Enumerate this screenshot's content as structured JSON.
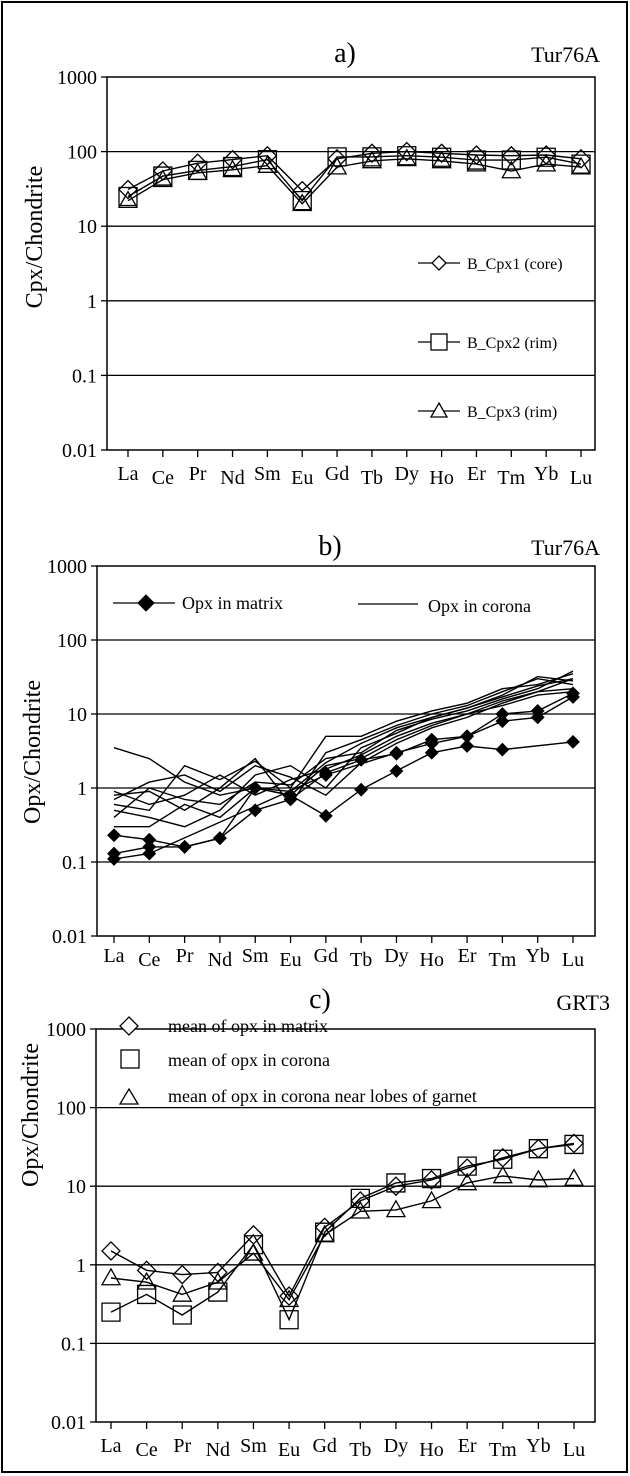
{
  "chart_data": [
    {
      "panel_label": "a)",
      "sample": "Tur76A",
      "type": "line",
      "scale": "log",
      "ylabel": "Cpx/Chondrite",
      "ylim": [
        0.01,
        1000
      ],
      "yticks": [
        "0.01",
        "0.1",
        "1",
        "10",
        "100",
        "1000"
      ],
      "categories": [
        "La",
        "Ce",
        "Pr",
        "Nd",
        "Sm",
        "Eu",
        "Gd",
        "Tb",
        "Dy",
        "Ho",
        "Er",
        "Tm",
        "Yb",
        "Lu"
      ],
      "grid": "horizontal",
      "legend_position": "right",
      "series": [
        {
          "name": "B_Cpx1 (core)",
          "marker": "diamond",
          "values": [
            31,
            55,
            70,
            78,
            88,
            30,
            80,
            95,
            100,
            95,
            90,
            88,
            90,
            80
          ]
        },
        {
          "name": "B_Cpx2 (rim)",
          "marker": "square",
          "values": [
            25,
            47,
            56,
            63,
            78,
            22,
            85,
            85,
            88,
            84,
            77,
            77,
            84,
            68
          ]
        },
        {
          "name": "B_Cpx3 (rim)",
          "marker": "triangle",
          "values": [
            22,
            42,
            52,
            57,
            65,
            20,
            62,
            75,
            80,
            75,
            68,
            55,
            68,
            62
          ]
        }
      ]
    },
    {
      "panel_label": "b)",
      "sample": "Tur76A",
      "type": "line",
      "scale": "log",
      "ylabel": "Opx/Chondrite",
      "ylim": [
        0.01,
        1000
      ],
      "yticks": [
        "0.01",
        "0.1",
        "1",
        "10",
        "100",
        "1000"
      ],
      "categories": [
        "La",
        "Ce",
        "Pr",
        "Nd",
        "Sm",
        "Eu",
        "Gd",
        "Tb",
        "Dy",
        "Ho",
        "Er",
        "Tm",
        "Yb",
        "Lu"
      ],
      "grid": "horizontal",
      "legend_position": "top",
      "legend": [
        "Opx in matrix",
        "Opx in corona"
      ],
      "series": [
        {
          "name": "Opx in matrix",
          "marker": "filled-diamond",
          "values": [
            0.23,
            0.2,
            0.16,
            0.21,
            0.5,
            0.7,
            1.6,
            2.4,
            2.9,
            4.5,
            5,
            10,
            11,
            19
          ]
        },
        {
          "name": "Opx in matrix",
          "marker": "filled-diamond",
          "values": [
            0.13,
            0.16,
            0.16,
            0.21,
            1.0,
            0.8,
            0.42,
            0.95,
            1.7,
            3.0,
            3.7,
            3.3,
            null,
            4.2
          ]
        },
        {
          "name": "Opx in matrix",
          "marker": "filled-diamond",
          "values": [
            0.11,
            0.13,
            null,
            null,
            null,
            null,
            1.5,
            null,
            3.0,
            4.0,
            5.0,
            8.0,
            9.0,
            17
          ]
        },
        {
          "name": "Opx in corona",
          "marker": "none",
          "values": [
            3.5,
            2.5,
            1.2,
            0.8,
            1.0,
            0.8,
            2.0,
            2.5,
            4.5,
            7,
            10,
            15,
            20,
            30
          ]
        },
        {
          "name": "Opx in corona",
          "marker": "none",
          "values": [
            0.8,
            0.9,
            0.5,
            1.0,
            2.5,
            0.6,
            3.0,
            4.5,
            7.0,
            10,
            13,
            20,
            30,
            25
          ]
        },
        {
          "name": "Opx in corona",
          "marker": "none",
          "values": [
            0.6,
            0.5,
            2.0,
            1.3,
            2.3,
            1.0,
            5.0,
            5.0,
            8.0,
            11,
            14,
            22,
            25,
            35
          ]
        },
        {
          "name": "Opx in corona",
          "marker": "none",
          "values": [
            0.5,
            0.4,
            0.3,
            0.5,
            1.5,
            2.0,
            1.0,
            3.5,
            5.5,
            9,
            12,
            18,
            32,
            28
          ]
        },
        {
          "name": "Opx in corona",
          "marker": "none",
          "values": [
            0.4,
            1.0,
            0.7,
            0.6,
            1.2,
            1.1,
            2.5,
            3.0,
            6.0,
            8.5,
            11,
            16,
            22,
            38
          ]
        },
        {
          "name": "Opx in corona",
          "marker": "none",
          "values": [
            0.7,
            1.2,
            1.5,
            0.9,
            2.0,
            1.4,
            0.8,
            2.2,
            4.0,
            6.5,
            9,
            14,
            20,
            22
          ]
        },
        {
          "name": "Opx in corona",
          "marker": "none",
          "values": [
            0.3,
            0.3,
            0.6,
            0.4,
            1.0,
            0.9,
            2.2,
            4.0,
            6.5,
            9,
            12,
            17,
            24,
            30
          ]
        },
        {
          "name": "Opx in corona",
          "marker": "none",
          "values": [
            0.9,
            0.6,
            0.8,
            1.5,
            0.8,
            1.3,
            1.8,
            2.8,
            5.0,
            7.5,
            10,
            13,
            18,
            20
          ]
        }
      ]
    },
    {
      "panel_label": "c)",
      "sample": "GRT3",
      "type": "line",
      "scale": "log",
      "ylabel": "Opx/Chondrite",
      "ylim": [
        0.01,
        1000
      ],
      "yticks": [
        "0.01",
        "0.1",
        "1",
        "10",
        "100",
        "1000"
      ],
      "categories": [
        "La",
        "Ce",
        "Pr",
        "Nd",
        "Sm",
        "Eu",
        "Gd",
        "Tb",
        "Dy",
        "Ho",
        "Er",
        "Tm",
        "Yb",
        "Lu"
      ],
      "grid": "horizontal",
      "legend_position": "top-left",
      "series": [
        {
          "name": "mean of opx in matrix",
          "marker": "diamond",
          "values": [
            1.5,
            0.85,
            0.75,
            0.8,
            2.4,
            0.4,
            3.0,
            6.5,
            10,
            12,
            17,
            23,
            30,
            35
          ]
        },
        {
          "name": "mean of opx in corona",
          "marker": "square",
          "values": [
            0.25,
            0.42,
            0.23,
            0.45,
            1.8,
            0.2,
            2.6,
            7.0,
            11,
            12.5,
            18,
            22,
            30,
            34
          ]
        },
        {
          "name": "mean of opx in corona near lobes of garnet",
          "marker": "triangle",
          "values": [
            0.68,
            0.6,
            0.42,
            0.6,
            1.4,
            0.36,
            2.4,
            4.8,
            5.0,
            6.5,
            11,
            13.5,
            12,
            12.5
          ]
        }
      ]
    }
  ]
}
